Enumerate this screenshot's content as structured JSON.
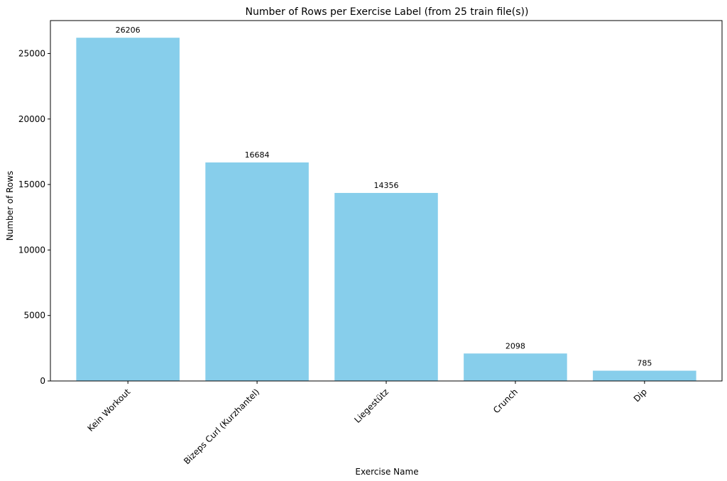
{
  "chart_data": {
    "type": "bar",
    "title": "Number of Rows per Exercise Label (from 25 train file(s))",
    "xlabel": "Exercise Name",
    "ylabel": "Number of Rows",
    "categories": [
      "Kein Workout",
      "Bizeps Curl (Kurzhantel)",
      "Liegestütz",
      "Crunch",
      "Dip"
    ],
    "values": [
      26206,
      16684,
      14356,
      2098,
      785
    ],
    "data_labels": [
      "26206",
      "16684",
      "14356",
      "2098",
      "785"
    ],
    "yticks": [
      0,
      5000,
      10000,
      15000,
      20000,
      25000
    ],
    "ytick_labels": [
      "0",
      "5000",
      "10000",
      "15000",
      "20000",
      "25000"
    ],
    "ylim": [
      0,
      27516
    ],
    "grid": false,
    "bar_color": "#87CEEB",
    "xtick_rotation_deg": -45
  }
}
